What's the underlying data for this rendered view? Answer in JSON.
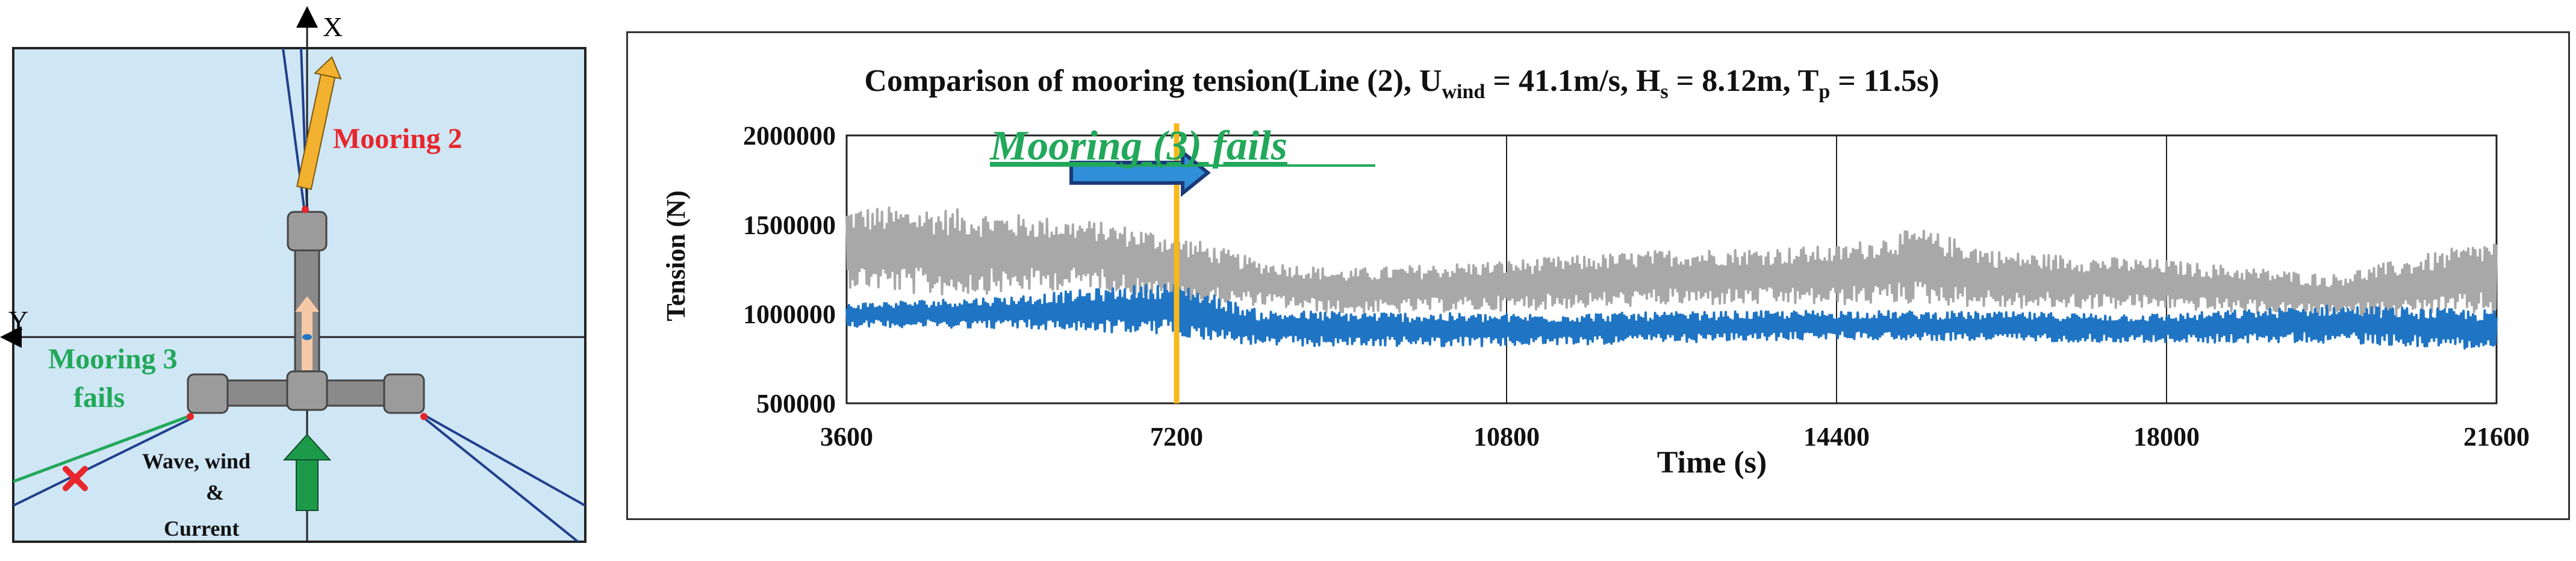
{
  "diagram": {
    "axis_x_label": "X",
    "axis_y_label": "Y",
    "mooring2_label": "Mooring 2",
    "mooring3_label_line1": "Mooring 3",
    "mooring3_label_line2": "fails",
    "env_label_line1": "Wave, wind",
    "env_label_line2": "&",
    "env_label_line3": "Current",
    "colors": {
      "background": "#cfe6f5",
      "mooring2_text": "#e8262b",
      "mooring3_text": "#21a85a",
      "green_arrow": "#1c9a4a",
      "yellow_arrow": "#f2b12e",
      "peach_arrow": "#f6c9a6",
      "platform": "#8a8a8a",
      "line_blue": "#1f3f8c",
      "line_green": "#21a85a",
      "fail_mark": "#e8262b"
    }
  },
  "chart_data": {
    "type": "line",
    "title_main": "Comparison of mooring tension(Line (2), U",
    "title_sub1": "wind",
    "title_mid1": " = 41.1m/s, H",
    "title_sub2": "s",
    "title_mid2": " = 8.12m, T",
    "title_sub3": "p",
    "title_end": " = 11.5s)",
    "xlabel": "Time (s)",
    "ylabel": "Tension (N)",
    "xlim": [
      3600,
      21600
    ],
    "ylim": [
      500000,
      2000000
    ],
    "xticks": [
      "3600",
      "7200",
      "10800",
      "14400",
      "18000",
      "21600"
    ],
    "yticks": [
      "500000",
      "1000000",
      "1500000",
      "2000000"
    ],
    "vertical_gridlines_at": [
      7200,
      10800,
      14400,
      18000
    ],
    "event_time": 7200,
    "event_label": "Mooring (3) fails",
    "series": [
      {
        "color": "#a8a8a8",
        "envelope": [
          {
            "x": 3600,
            "low": 1150000,
            "high": 1600000
          },
          {
            "x": 4500,
            "low": 1100000,
            "high": 1600000
          },
          {
            "x": 5400,
            "low": 1120000,
            "high": 1560000
          },
          {
            "x": 6300,
            "low": 1150000,
            "high": 1520000
          },
          {
            "x": 7200,
            "low": 1050000,
            "high": 1450000
          },
          {
            "x": 8100,
            "low": 1050000,
            "high": 1300000
          },
          {
            "x": 9000,
            "low": 1000000,
            "high": 1250000
          },
          {
            "x": 10800,
            "low": 1020000,
            "high": 1300000
          },
          {
            "x": 12600,
            "low": 1050000,
            "high": 1360000
          },
          {
            "x": 14400,
            "low": 1050000,
            "high": 1380000
          },
          {
            "x": 15300,
            "low": 1060000,
            "high": 1480000
          },
          {
            "x": 16200,
            "low": 1030000,
            "high": 1350000
          },
          {
            "x": 18000,
            "low": 1030000,
            "high": 1300000
          },
          {
            "x": 19800,
            "low": 980000,
            "high": 1220000
          },
          {
            "x": 21600,
            "low": 1000000,
            "high": 1420000
          }
        ]
      },
      {
        "color": "#1f74c4",
        "envelope": [
          {
            "x": 3600,
            "low": 930000,
            "high": 1060000
          },
          {
            "x": 5400,
            "low": 920000,
            "high": 1100000
          },
          {
            "x": 7200,
            "low": 880000,
            "high": 1180000
          },
          {
            "x": 8100,
            "low": 820000,
            "high": 1020000
          },
          {
            "x": 10800,
            "low": 820000,
            "high": 1000000
          },
          {
            "x": 14400,
            "low": 860000,
            "high": 1020000
          },
          {
            "x": 18000,
            "low": 840000,
            "high": 1000000
          },
          {
            "x": 19800,
            "low": 840000,
            "high": 1050000
          },
          {
            "x": 21600,
            "low": 800000,
            "high": 1020000
          }
        ]
      }
    ],
    "colors": {
      "event_line": "#f6b81c",
      "event_text": "#21a85a",
      "arrow_fill": "#2f8fd8",
      "arrow_stroke": "#1b3a7a"
    }
  }
}
